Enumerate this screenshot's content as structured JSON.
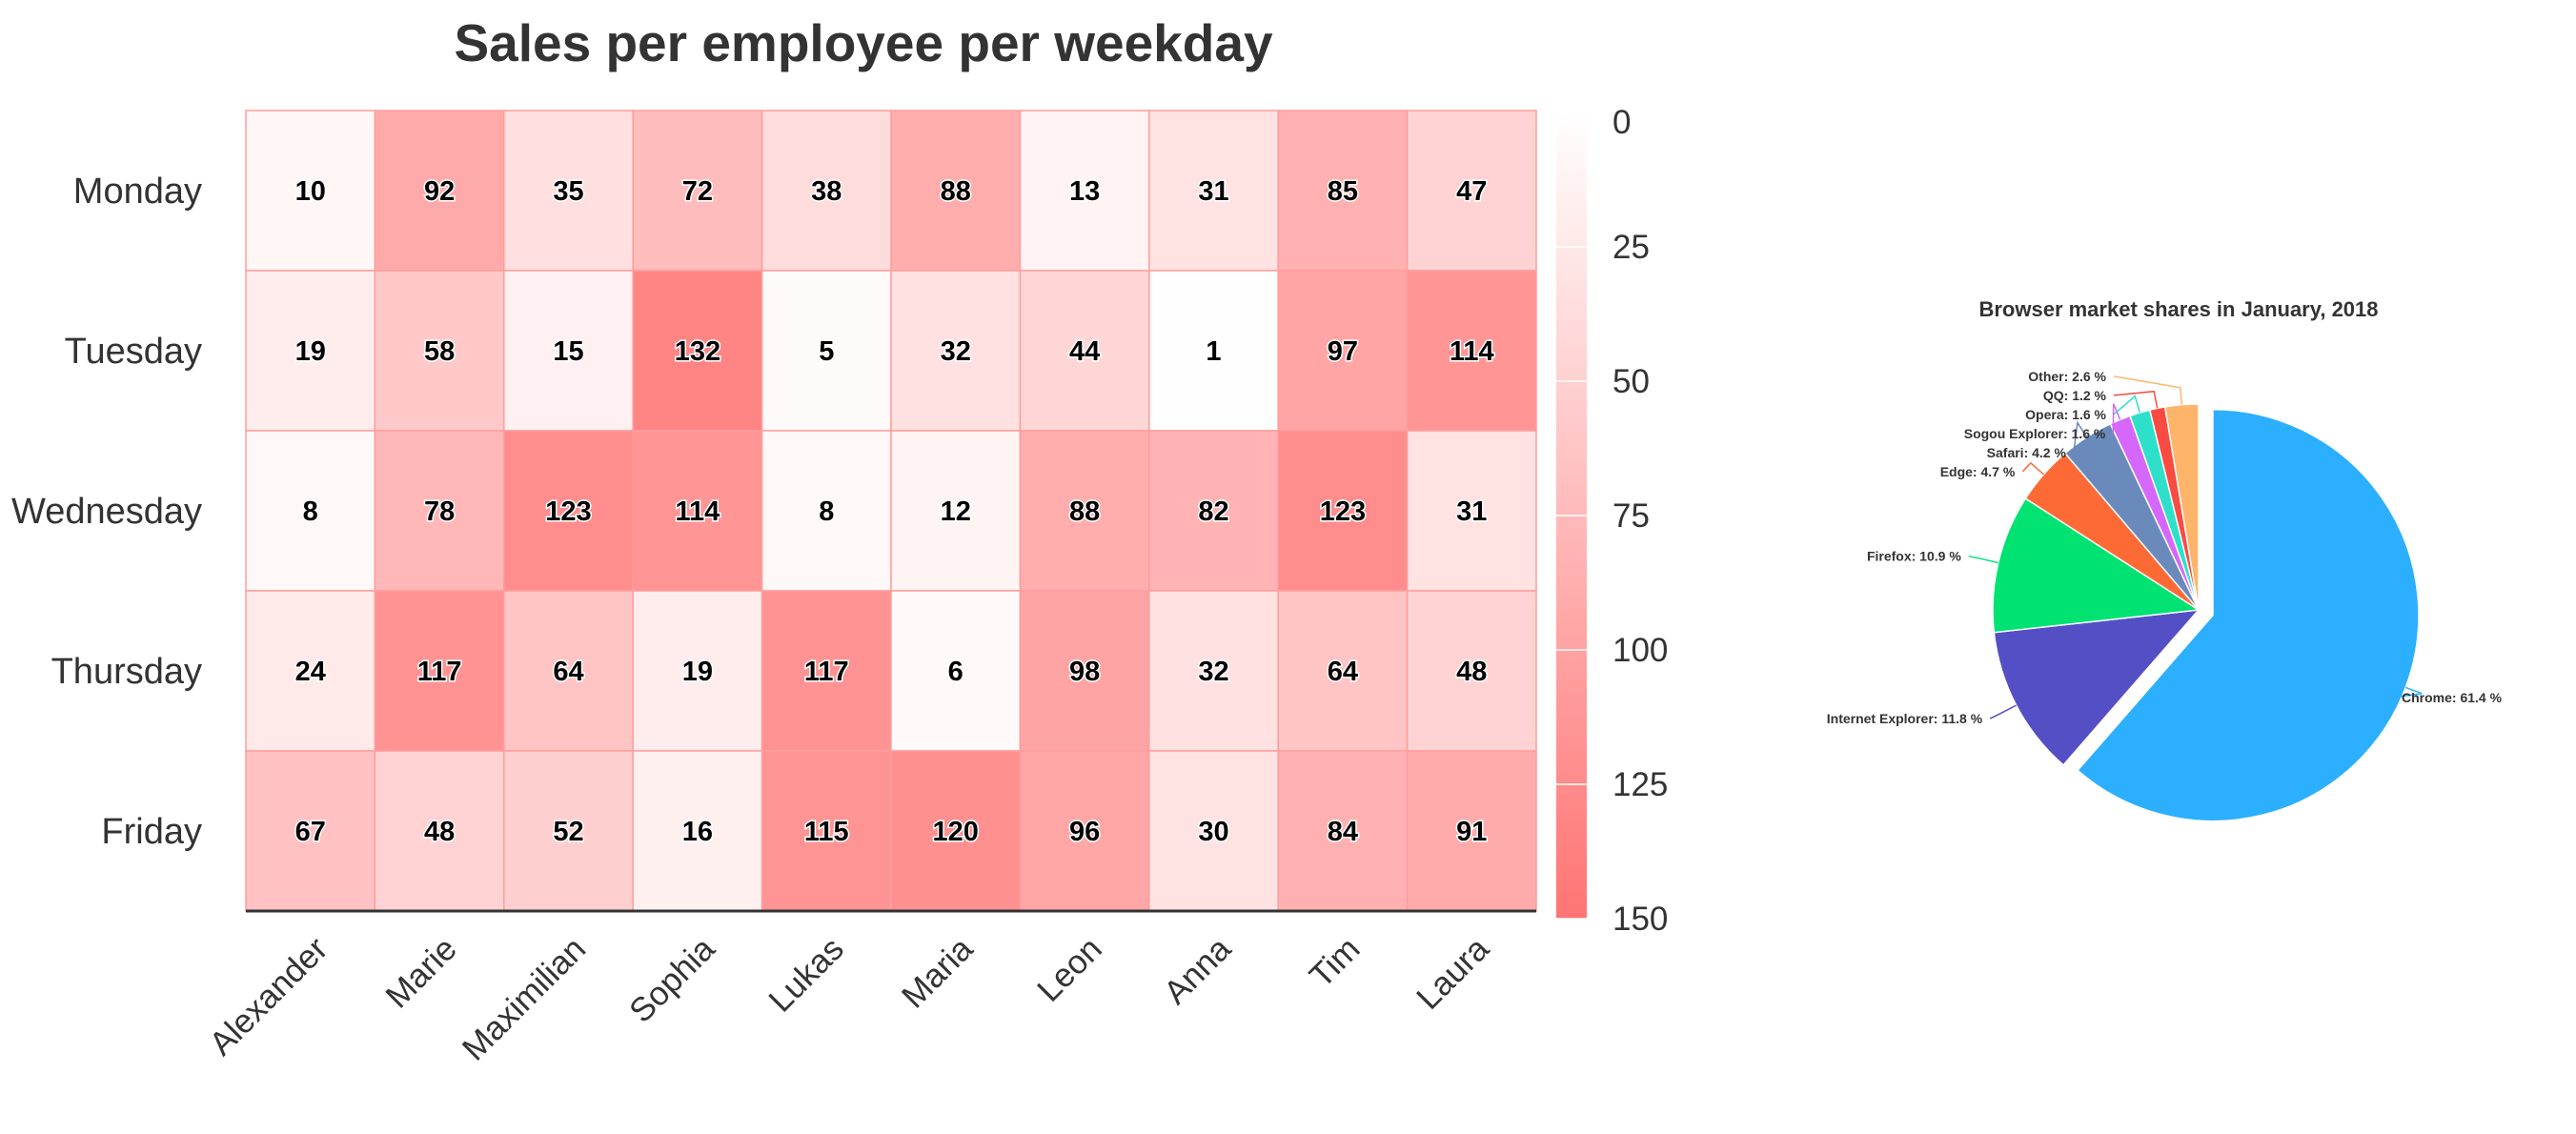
{
  "chart_data": [
    {
      "type": "heatmap",
      "title": "Sales per employee per weekday",
      "x_categories": [
        "Alexander",
        "Marie",
        "Maximilian",
        "Sophia",
        "Lukas",
        "Maria",
        "Leon",
        "Anna",
        "Tim",
        "Laura"
      ],
      "y_categories": [
        "Monday",
        "Tuesday",
        "Wednesday",
        "Thursday",
        "Friday"
      ],
      "values": [
        [
          10,
          92,
          35,
          72,
          38,
          88,
          13,
          31,
          85,
          47
        ],
        [
          19,
          58,
          15,
          132,
          5,
          32,
          44,
          1,
          97,
          114
        ],
        [
          8,
          78,
          123,
          114,
          8,
          12,
          88,
          82,
          123,
          31
        ],
        [
          24,
          117,
          64,
          19,
          117,
          6,
          98,
          32,
          64,
          48
        ],
        [
          67,
          48,
          52,
          16,
          115,
          120,
          96,
          30,
          84,
          91
        ]
      ],
      "color_axis": {
        "min": 0,
        "max": 150,
        "ticks": [
          0,
          25,
          50,
          75,
          100,
          125,
          150
        ],
        "min_color": "#ffffff",
        "max_color": "#ff7474",
        "placement": "right"
      },
      "data_labels": true,
      "grid": true
    },
    {
      "type": "pie",
      "title": "Browser market shares in January, 2018",
      "slices": [
        {
          "name": "Chrome",
          "value": 61.41,
          "label": "Chrome: 61.4 %",
          "color": "#2caffe",
          "sliced": true
        },
        {
          "name": "Internet Explorer",
          "value": 11.84,
          "label": "Internet Explorer: 11.8 %",
          "color": "#544fc5"
        },
        {
          "name": "Firefox",
          "value": 10.85,
          "label": "Firefox: 10.9 %",
          "color": "#00e272"
        },
        {
          "name": "Edge",
          "value": 4.67,
          "label": "Edge: 4.7 %",
          "color": "#fe6a35"
        },
        {
          "name": "Safari",
          "value": 4.18,
          "label": "Safari: 4.2 %",
          "color": "#6b8abc"
        },
        {
          "name": "Sogou Explorer",
          "value": 1.64,
          "label": "Sogou Explorer: 1.6 %",
          "color": "#d568fb"
        },
        {
          "name": "Opera",
          "value": 1.6,
          "label": "Opera: 1.6 %",
          "color": "#2ee0ca"
        },
        {
          "name": "QQ",
          "value": 1.2,
          "label": "QQ: 1.2 %",
          "color": "#fa4b42"
        },
        {
          "name": "Other",
          "value": 2.61,
          "label": "Other: 2.6 %",
          "color": "#feb56a"
        }
      ]
    }
  ]
}
